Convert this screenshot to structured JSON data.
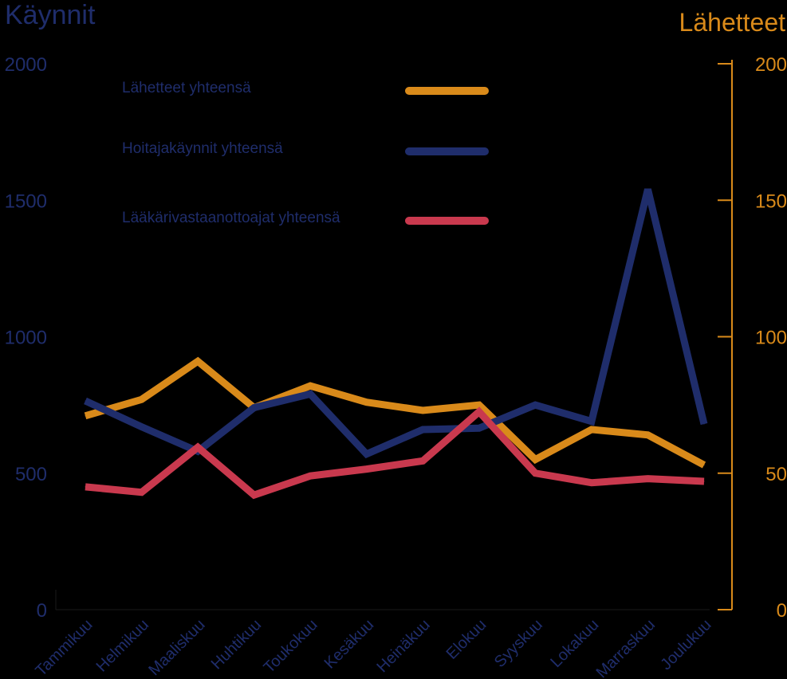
{
  "colors": {
    "background": "#000000",
    "left_axis": "#1f2d6b",
    "right_axis": "#d98a1a",
    "series_lahetteet": "#d98a1a",
    "series_hoitaja": "#1f2d6b",
    "series_laakari": "#c9394e"
  },
  "chart_data": {
    "type": "line",
    "title_left": "Käynnit",
    "title_right": "Lähetteet",
    "categories": [
      "Tammikuu",
      "Helmikuu",
      "Maaliskuu",
      "Huhtikuu",
      "Toukokuu",
      "Kesäkuu",
      "Heinäkuu",
      "Elokuu",
      "Syyskuu",
      "Lokakuu",
      "Marraskuu",
      "Joulukuu"
    ],
    "y_left": {
      "ticks": [
        "0",
        "500",
        "1000",
        "1500",
        "2000"
      ],
      "ylim": [
        0,
        2000
      ]
    },
    "y_right": {
      "ticks": [
        "0",
        "50",
        "100",
        "150",
        "200"
      ],
      "ylim": [
        0,
        200
      ]
    },
    "legend_position": "top-left",
    "series": [
      {
        "name": "Lähetteet yhteensä",
        "axis": "right",
        "color": "#d98a1a",
        "values": [
          71,
          77,
          91,
          74,
          82,
          76,
          73,
          75,
          55,
          66,
          64,
          53
        ]
      },
      {
        "name": "Hoitajakäynnit yhteensä",
        "axis": "left",
        "color": "#1f2d6b",
        "values": [
          765,
          670,
          580,
          740,
          790,
          570,
          660,
          665,
          750,
          690,
          1540,
          680
        ]
      },
      {
        "name": "Lääkärivastaanottoajat yhteensä",
        "axis": "left",
        "color": "#c9394e",
        "values": [
          450,
          430,
          595,
          420,
          490,
          515,
          545,
          725,
          500,
          465,
          480,
          470
        ]
      }
    ]
  }
}
